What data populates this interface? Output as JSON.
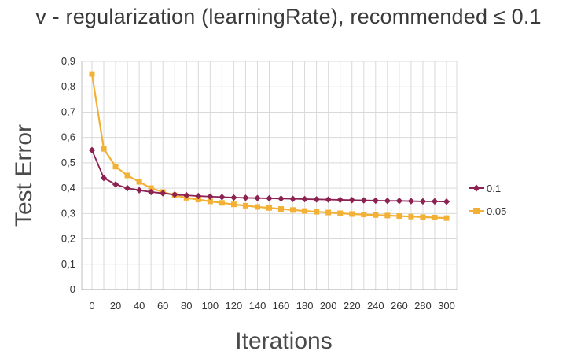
{
  "chart_data": {
    "type": "line",
    "title": "v - regularization (learningRate), recommended ≤ 0.1",
    "xlabel": "Iterations",
    "ylabel": "Test Error",
    "xlim": [
      0,
      300
    ],
    "ylim": [
      0,
      0.9
    ],
    "x_ticks": [
      "0",
      "20",
      "40",
      "60",
      "80",
      "100",
      "120",
      "140",
      "160",
      "180",
      "200",
      "220",
      "240",
      "260",
      "280",
      "300"
    ],
    "y_ticks": [
      "0",
      "0,1",
      "0,2",
      "0,3",
      "0,4",
      "0,5",
      "0,6",
      "0,7",
      "0,8",
      "0,9"
    ],
    "grid": true,
    "legend_position": "right",
    "x": [
      0,
      10,
      20,
      30,
      40,
      50,
      60,
      70,
      80,
      90,
      100,
      110,
      120,
      130,
      140,
      150,
      160,
      170,
      180,
      190,
      200,
      210,
      220,
      230,
      240,
      250,
      260,
      270,
      280,
      290,
      300
    ],
    "series": [
      {
        "name": "0.1",
        "color": "#8B2252",
        "marker": "diamond",
        "values": [
          0.55,
          0.44,
          0.415,
          0.4,
          0.392,
          0.385,
          0.38,
          0.375,
          0.372,
          0.369,
          0.367,
          0.365,
          0.363,
          0.362,
          0.361,
          0.36,
          0.359,
          0.358,
          0.357,
          0.356,
          0.355,
          0.354,
          0.353,
          0.352,
          0.351,
          0.35,
          0.35,
          0.349,
          0.348,
          0.348,
          0.347
        ]
      },
      {
        "name": "0.05",
        "color": "#F2B134",
        "marker": "square",
        "values": [
          0.85,
          0.555,
          0.485,
          0.45,
          0.425,
          0.4,
          0.385,
          0.372,
          0.362,
          0.355,
          0.348,
          0.342,
          0.336,
          0.331,
          0.326,
          0.322,
          0.318,
          0.314,
          0.31,
          0.307,
          0.304,
          0.301,
          0.298,
          0.296,
          0.294,
          0.292,
          0.29,
          0.288,
          0.286,
          0.284,
          0.282
        ]
      }
    ]
  }
}
